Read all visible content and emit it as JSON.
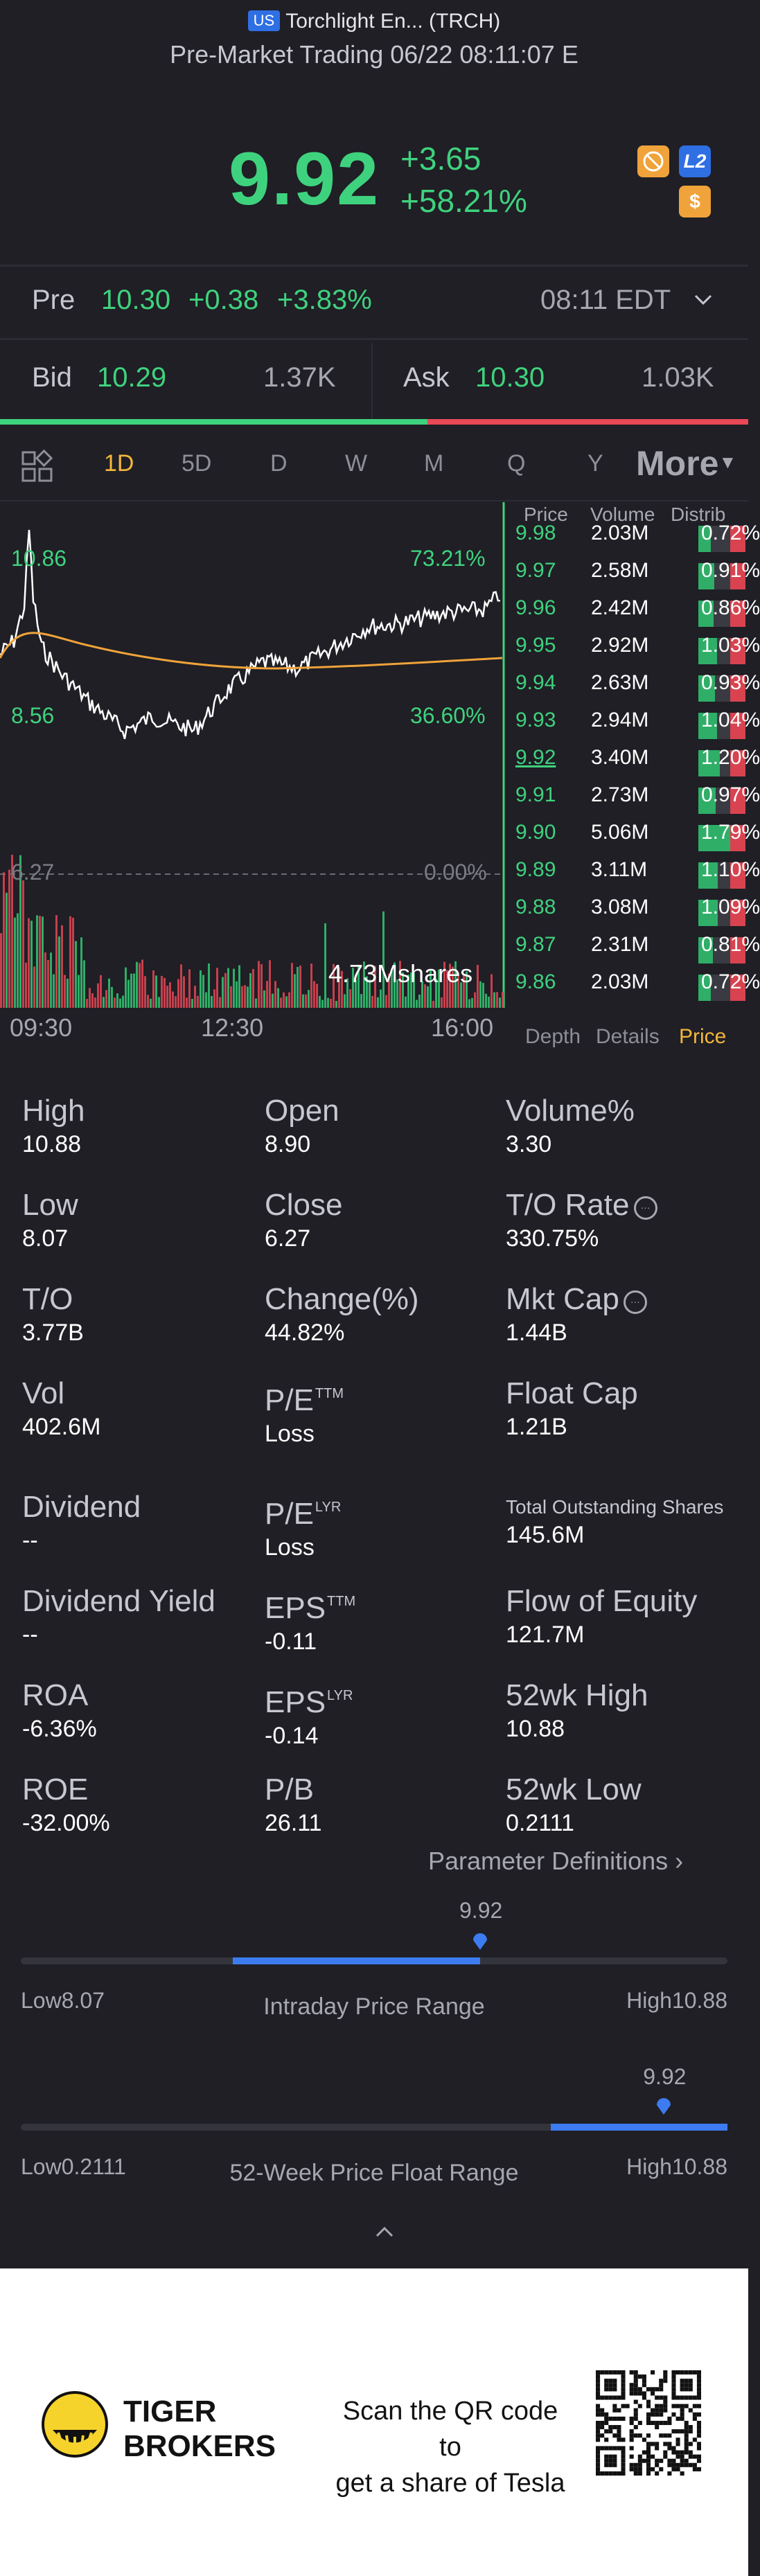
{
  "colors": {
    "up": "#3fd27e",
    "down": "#e94856",
    "accent": "#f4b63b",
    "range_blue": "#3d7cf0",
    "background": "#1f1f25"
  },
  "header": {
    "market_badge": "US",
    "title": "Torchlight En... (TRCH)",
    "subtitle": "Pre-Market Trading 06/22 08:11:07 E",
    "price": "9.92",
    "change": "+3.65",
    "change_pct": "+58.21%",
    "icons": [
      "no-ads-icon",
      "level2-icon",
      "dollar-icon"
    ],
    "level2_label": "L2",
    "dollar_label": "$"
  },
  "pre_market": {
    "label": "Pre",
    "price": "10.30",
    "change": "+0.38",
    "change_pct": "+3.83%",
    "time": "08:11 EDT"
  },
  "quote": {
    "bid_label": "Bid",
    "bid_price": "10.29",
    "bid_size": "1.37K",
    "ask_label": "Ask",
    "ask_price": "10.30",
    "ask_size": "1.03K"
  },
  "tabs": {
    "items": [
      "1D",
      "5D",
      "D",
      "W",
      "M",
      "Q",
      "Y"
    ],
    "active": "1D",
    "more": "More"
  },
  "chart": {
    "price_high": "10.86",
    "price_low": "8.56",
    "pct_high": "73.21%",
    "pct_low": "36.60%",
    "prev_close": "6.27",
    "zero_pct": "0.00%",
    "volume_label": "4.73Mshares",
    "time_start": "09:30",
    "time_mid": "12:30",
    "time_end": "16:00"
  },
  "order_book": {
    "headers": {
      "price": "Price",
      "volume": "Volume",
      "distrib": "Distrib"
    },
    "rows": [
      {
        "price": "9.98",
        "volume": "2.03M",
        "pct": "0.72%",
        "share": 0.4
      },
      {
        "price": "9.97",
        "volume": "2.58M",
        "pct": "0.91%",
        "share": 0.51
      },
      {
        "price": "9.96",
        "volume": "2.42M",
        "pct": "0.86%",
        "share": 0.48
      },
      {
        "price": "9.95",
        "volume": "2.92M",
        "pct": "1.03%",
        "share": 0.58
      },
      {
        "price": "9.94",
        "volume": "2.63M",
        "pct": "0.93%",
        "share": 0.52
      },
      {
        "price": "9.93",
        "volume": "2.94M",
        "pct": "1.04%",
        "share": 0.58
      },
      {
        "price": "9.92",
        "volume": "3.40M",
        "pct": "1.20%",
        "share": 0.67
      },
      {
        "price": "9.91",
        "volume": "2.73M",
        "pct": "0.97%",
        "share": 0.54
      },
      {
        "price": "9.90",
        "volume": "5.06M",
        "pct": "1.79%",
        "share": 1.0
      },
      {
        "price": "9.89",
        "volume": "3.11M",
        "pct": "1.10%",
        "share": 0.61
      },
      {
        "price": "9.88",
        "volume": "3.08M",
        "pct": "1.09%",
        "share": 0.61
      },
      {
        "price": "9.87",
        "volume": "2.31M",
        "pct": "0.81%",
        "share": 0.45
      },
      {
        "price": "9.86",
        "volume": "2.03M",
        "pct": "0.72%",
        "share": 0.4
      }
    ],
    "footer_tabs": [
      "Depth",
      "Details",
      "Price"
    ],
    "active_footer": "Price"
  },
  "stats": {
    "high": {
      "label": "High",
      "value": "10.88"
    },
    "open": {
      "label": "Open",
      "value": "8.90"
    },
    "volume_pct": {
      "label": "Volume%",
      "value": "3.30"
    },
    "low": {
      "label": "Low",
      "value": "8.07"
    },
    "close": {
      "label": "Close",
      "value": "6.27"
    },
    "to_rate": {
      "label": "T/O Rate",
      "value": "330.75%"
    },
    "to": {
      "label": "T/O",
      "value": "3.77B"
    },
    "change": {
      "label": "Change(%)",
      "value": "44.82%"
    },
    "mkt_cap": {
      "label": "Mkt Cap",
      "value": "1.44B"
    },
    "vol": {
      "label": "Vol",
      "value": "402.6M"
    },
    "pe_ttm": {
      "label": "P/E",
      "sup": "TTM",
      "value": "Loss"
    },
    "float_cap": {
      "label": "Float Cap",
      "value": "1.21B"
    },
    "dividend": {
      "label": "Dividend",
      "value": "--"
    },
    "pe_lyr": {
      "label": "P/E",
      "sup": "LYR",
      "value": "Loss"
    },
    "total_shares": {
      "label": "Total Outstanding Shares",
      "value": "145.6M"
    },
    "dividend_yield": {
      "label": "Dividend Yield",
      "value": "--"
    },
    "eps_ttm": {
      "label": "EPS",
      "sup": "TTM",
      "value": "-0.11"
    },
    "flow_equity": {
      "label": "Flow of Equity",
      "value": "121.7M"
    },
    "roa": {
      "label": "ROA",
      "value": "-6.36%"
    },
    "eps_lyr": {
      "label": "EPS",
      "sup": "LYR",
      "value": "-0.14"
    },
    "wk52_high": {
      "label": "52wk High",
      "value": "10.88"
    },
    "roe": {
      "label": "ROE",
      "value": "-32.00%"
    },
    "pb": {
      "label": "P/B",
      "value": "26.11"
    },
    "wk52_low": {
      "label": "52wk Low",
      "value": "0.2111"
    },
    "param_link": "Parameter Definitions"
  },
  "intraday_range": {
    "current": "9.92",
    "low": "Low8.07",
    "high": "High10.88",
    "title": "Intraday Price Range",
    "fill_start": 0.3,
    "fill_end": 0.65,
    "marker_pos": 0.65
  },
  "week52_range": {
    "current": "9.92",
    "low": "Low0.2111",
    "high": "High10.88",
    "title": "52-Week Price Float Range",
    "fill_start": 0.75,
    "fill_end": 1.0,
    "marker_pos": 0.91
  },
  "footer": {
    "brand_line1": "TIGER",
    "brand_line2": "BROKERS",
    "scan_line1": "Scan the QR code to",
    "scan_line2": "get a share of Tesla"
  }
}
